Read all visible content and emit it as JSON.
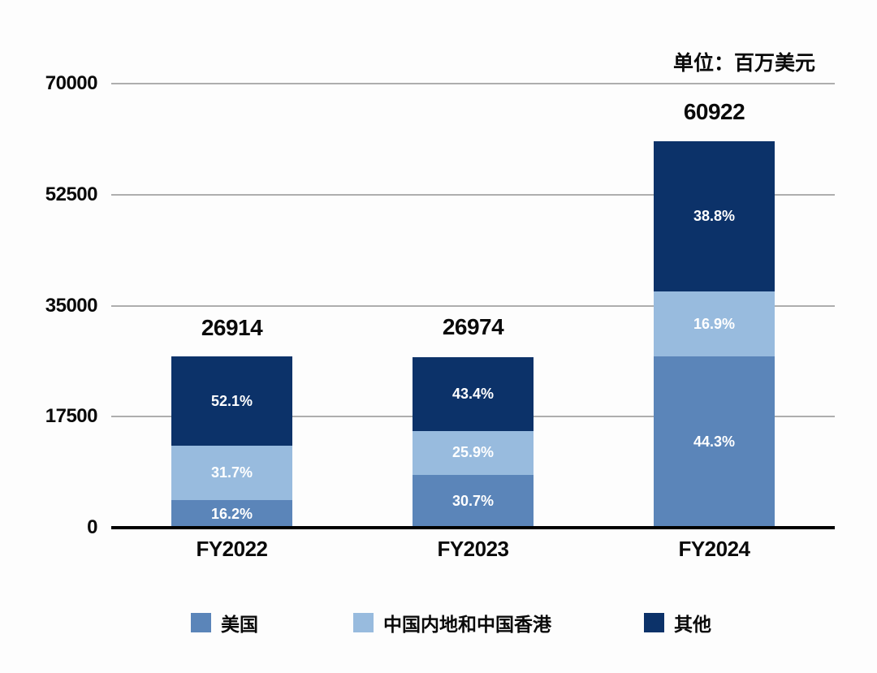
{
  "unit_label": "单位：百万美元",
  "colors": {
    "us_blue": "#5B85B9",
    "china_light_blue": "#98BBDE",
    "other_navy": "#0C3269",
    "grid_gray": "#AEAEAE",
    "axis_black": "#000000",
    "text_black": "#0A0A0A",
    "percent_text_white": "#FFFFFF",
    "background": "#FDFDFD"
  },
  "chart_data": {
    "type": "bar",
    "stacked": true,
    "title": "",
    "unit": "百万美元",
    "categories": [
      "FY2022",
      "FY2023",
      "FY2024"
    ],
    "totals": [
      26914,
      26974,
      60922
    ],
    "series": [
      {
        "name": "美国",
        "color": "#5B85B9",
        "pct": [
          16.2,
          30.7,
          44.3
        ],
        "values": [
          4360,
          8281,
          26988
        ]
      },
      {
        "name": "中国内地和中国香港",
        "color": "#98BBDE",
        "pct": [
          31.7,
          25.9,
          16.9
        ],
        "values": [
          8532,
          6986,
          10296
        ]
      },
      {
        "name": "其他",
        "color": "#0C3269",
        "pct": [
          52.1,
          43.4,
          38.8
        ],
        "values": [
          14022,
          11707,
          23638
        ]
      }
    ],
    "y_ticks": [
      0,
      17500,
      35000,
      52500,
      70000
    ],
    "ylim": [
      0,
      70000
    ],
    "grid": true,
    "legend_position": "bottom"
  }
}
